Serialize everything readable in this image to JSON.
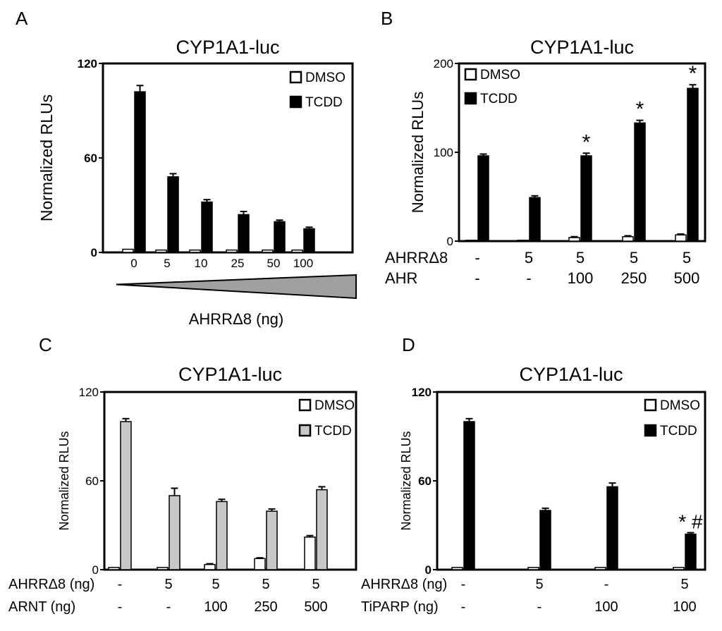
{
  "chart_data": [
    {
      "panel": "A",
      "type": "bar",
      "title": "CYP1A1-luc",
      "ylabel": "Normalized RLUs",
      "xlabel": "AHRRΔ8 (ng)",
      "ylim": [
        0,
        120
      ],
      "yticks": [
        "0",
        "60",
        "120"
      ],
      "categories": [
        "0",
        "5",
        "10",
        "25",
        "50",
        "100"
      ],
      "series": [
        {
          "name": "DMSO",
          "color": "#ffffff",
          "values": [
            2,
            1.5,
            1.5,
            1.5,
            1.5,
            1.5
          ],
          "errors": [
            0,
            0,
            0,
            0,
            0,
            0
          ]
        },
        {
          "name": "TCDD",
          "color": "#000000",
          "values": [
            102,
            48,
            32,
            24,
            19.5,
            15
          ],
          "errors": [
            4,
            2,
            1.5,
            2,
            1,
            1
          ]
        }
      ],
      "annotations": []
    },
    {
      "panel": "B",
      "type": "bar",
      "title": "CYP1A1-luc",
      "ylabel": "Normalized RLUs",
      "ylim": [
        0,
        200
      ],
      "yticks": [
        "0",
        "100",
        "200"
      ],
      "row_labels": [
        "AHRRΔ8",
        "AHR"
      ],
      "rows": [
        [
          "-",
          "5",
          "5",
          "5",
          "5"
        ],
        [
          "-",
          "-",
          "100",
          "250",
          "500"
        ]
      ],
      "series": [
        {
          "name": "DMSO",
          "color": "#ffffff",
          "values": [
            1,
            1,
            4,
            5,
            7
          ],
          "errors": [
            0,
            0,
            1,
            1,
            1
          ]
        },
        {
          "name": "TCDD",
          "color": "#000000",
          "values": [
            96,
            49,
            96,
            133,
            172
          ],
          "errors": [
            2,
            2,
            3,
            3,
            4
          ]
        }
      ],
      "annotations": [
        {
          "category_index": 2,
          "text": "*"
        },
        {
          "category_index": 3,
          "text": "*"
        },
        {
          "category_index": 4,
          "text": "*"
        }
      ]
    },
    {
      "panel": "C",
      "type": "bar",
      "title": "CYP1A1-luc",
      "ylabel": "Normalized RLUs",
      "ylim": [
        0,
        120
      ],
      "yticks": [
        "0",
        "60",
        "120"
      ],
      "row_labels": [
        "AHRRΔ8 (ng)",
        "ARNT (ng)"
      ],
      "rows": [
        [
          "-",
          "5",
          "5",
          "5",
          "5"
        ],
        [
          "-",
          "-",
          "100",
          "250",
          "500"
        ]
      ],
      "series": [
        {
          "name": "DMSO",
          "color": "#ffffff",
          "values": [
            1.5,
            1.5,
            3.5,
            7.5,
            22
          ],
          "errors": [
            0,
            0,
            0.5,
            0.5,
            1
          ]
        },
        {
          "name": "TCDD",
          "color": "#c8c8c8",
          "values": [
            100,
            50,
            46,
            39.5,
            54
          ],
          "errors": [
            2,
            5,
            1.5,
            1.5,
            2
          ]
        }
      ],
      "annotations": []
    },
    {
      "panel": "D",
      "type": "bar",
      "title": "CYP1A1-luc",
      "ylabel": "Normalized RLUs",
      "ylim": [
        0,
        120
      ],
      "yticks": [
        "0",
        "60",
        "120"
      ],
      "row_labels": [
        "AHRRΔ8 (ng)",
        "TiPARP  (ng)"
      ],
      "rows": [
        [
          "-",
          "5",
          "-",
          "5"
        ],
        [
          "-",
          "-",
          "100",
          "100"
        ]
      ],
      "series": [
        {
          "name": "DMSO",
          "color": "#ffffff",
          "values": [
            1.5,
            1.5,
            1.5,
            1.5
          ],
          "errors": [
            0,
            0,
            0,
            0
          ]
        },
        {
          "name": "TCDD",
          "color": "#000000",
          "values": [
            100,
            40,
            56,
            24
          ],
          "errors": [
            2,
            1.5,
            2.5,
            1
          ]
        }
      ],
      "annotations": [
        {
          "category_index": 3,
          "text": "* #"
        }
      ]
    }
  ]
}
